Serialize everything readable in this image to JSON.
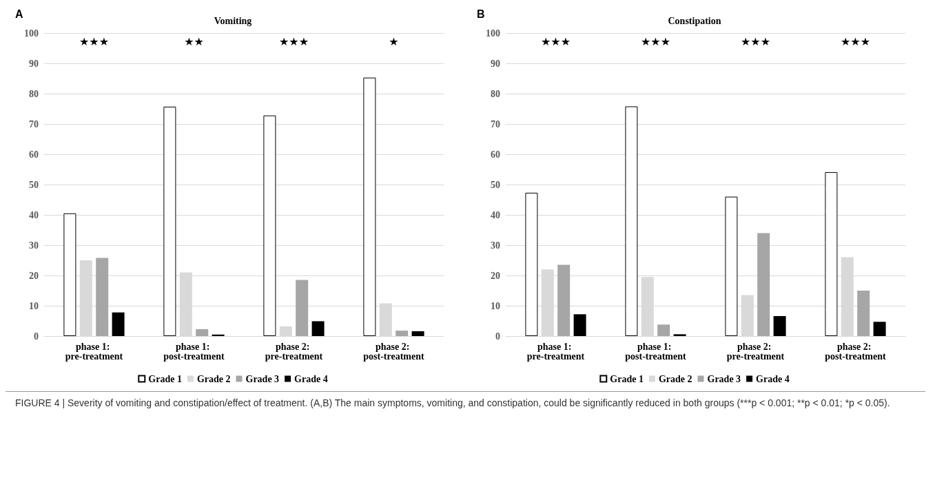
{
  "chart_data": [
    {
      "type": "bar",
      "title": "Vomiting",
      "categories": [
        "phase 1: pre-treatment",
        "phase 1: post-treatment",
        "phase 2: pre-treatment",
        "phase 2: post-treatment"
      ],
      "series": [
        {
          "name": "Grade 1",
          "color": "#ffffff",
          "values": [
            40.5,
            75.7,
            72.8,
            85.3
          ]
        },
        {
          "name": "Grade 2",
          "color": "#d9d9d9",
          "values": [
            25,
            21,
            3.2,
            10.8
          ]
        },
        {
          "name": "Grade 3",
          "color": "#a6a6a6",
          "values": [
            25.8,
            2.3,
            18.5,
            1.8
          ]
        },
        {
          "name": "Grade 4",
          "color": "#000000",
          "values": [
            7.8,
            0.5,
            4.9,
            1.6
          ]
        }
      ],
      "ylim": [
        0,
        100
      ],
      "yticks": [
        0,
        10,
        20,
        30,
        40,
        50,
        60,
        70,
        80,
        90,
        100
      ],
      "grid": "y",
      "legend": "bottom",
      "annotations": [
        "A",
        "★★★",
        "★★",
        "★★★",
        "★"
      ]
    },
    {
      "type": "bar",
      "title": "Constipation",
      "categories": [
        "phase 1: pre-treatment",
        "phase 1: post-treatment",
        "phase 2: pre-treatment",
        "phase 2: post-treatment"
      ],
      "series": [
        {
          "name": "Grade 1",
          "color": "#ffffff",
          "values": [
            47.3,
            75.8,
            46,
            54.1
          ]
        },
        {
          "name": "Grade 2",
          "color": "#d9d9d9",
          "values": [
            22,
            19.5,
            13.5,
            26
          ]
        },
        {
          "name": "Grade 3",
          "color": "#a6a6a6",
          "values": [
            23.5,
            3.8,
            34,
            15
          ]
        },
        {
          "name": "Grade 4",
          "color": "#000000",
          "values": [
            7.2,
            0.6,
            6.6,
            4.7
          ]
        }
      ],
      "ylim": [
        0,
        100
      ],
      "yticks": [
        0,
        10,
        20,
        30,
        40,
        50,
        60,
        70,
        80,
        90,
        100
      ],
      "grid": "y",
      "legend": "bottom",
      "annotations": [
        "B",
        "★★★",
        "★★★",
        "★★★",
        "★★★",
        "FIGURE 4 | Severity of vomiting and constipation/effect of treatment. (A,B) The main symptoms, vomiting, and constipation, could be significantly reduced in both groups (***p < 0.001; **p < 0.01; *p < 0.05)."
      ]
    }
  ]
}
